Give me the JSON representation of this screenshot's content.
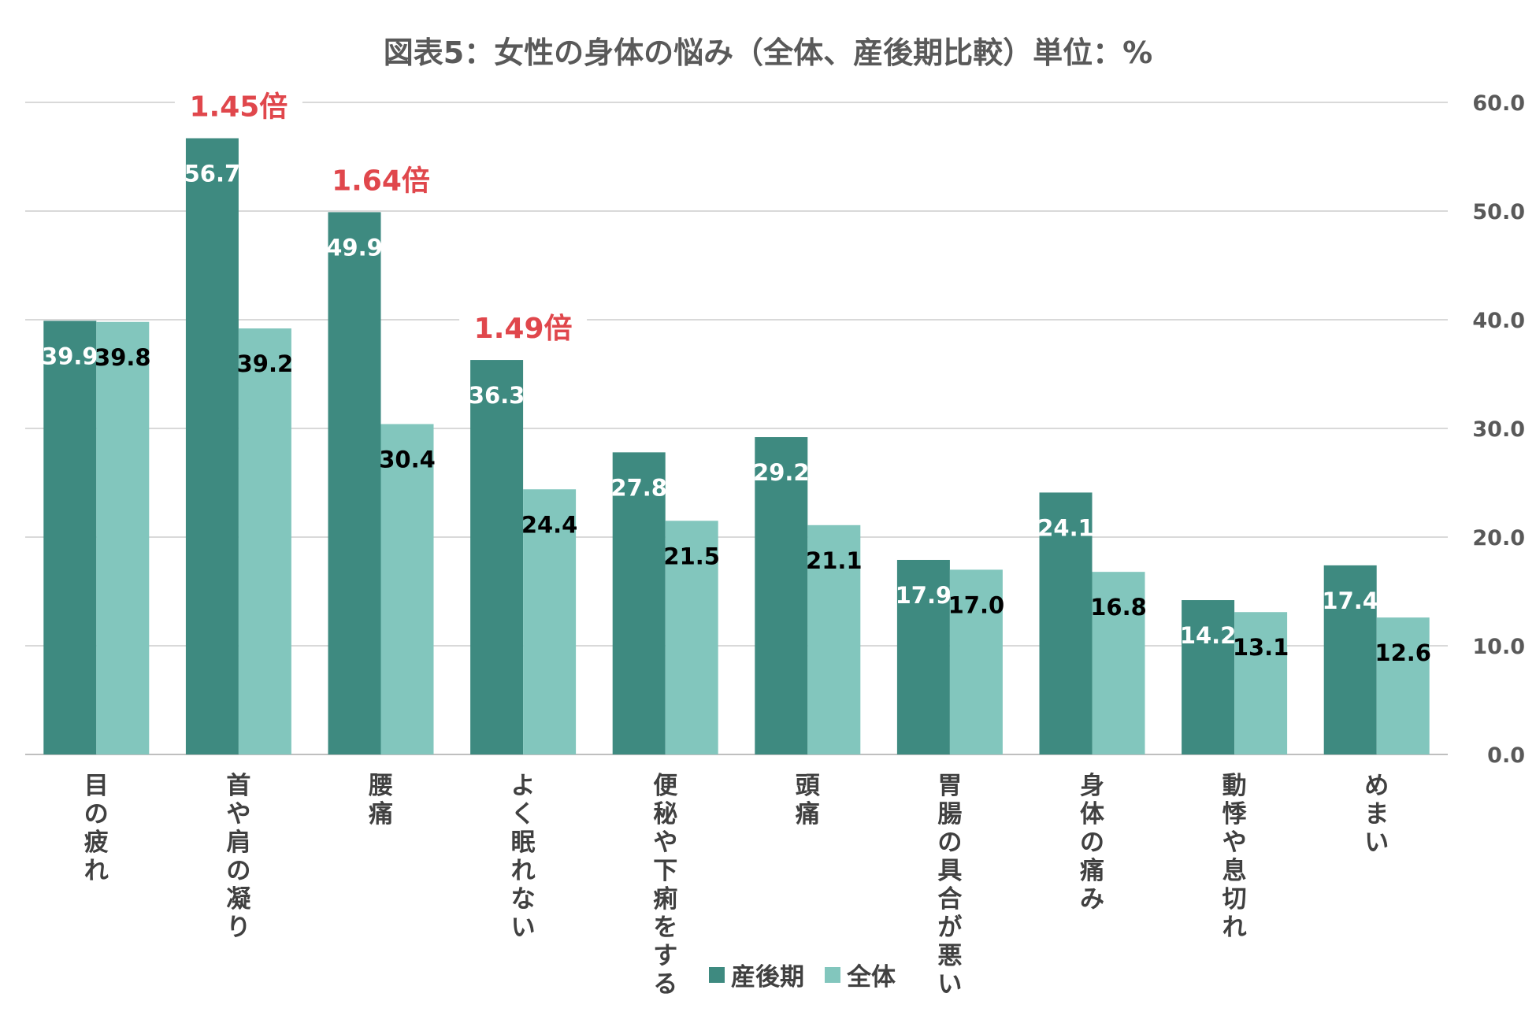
{
  "chart_data": {
    "type": "bar",
    "title": "図表5：女性の身体の悩み（全体、産後期比較）単位：%",
    "categories": [
      "目の疲れ",
      "首や肩の凝り",
      "腰痛",
      "よく眠れない",
      "便秘や下痢をする",
      "頭痛",
      "胃腸の具合が悪い",
      "身体の痛み",
      "動悸や息切れ",
      "めまい"
    ],
    "series": [
      {
        "name": "産後期",
        "color": "#3e8a80",
        "label_color": "#ffffff",
        "values": [
          39.9,
          56.7,
          49.9,
          36.3,
          27.8,
          29.2,
          17.9,
          24.1,
          14.2,
          17.4
        ],
        "labels": [
          "39.9",
          "56.7",
          "49.9",
          "36.3",
          "27.8",
          "29.2",
          "17.9",
          "24.1",
          "14.2",
          "17.4"
        ]
      },
      {
        "name": "全体",
        "color": "#82c6bd",
        "label_color": "#000000",
        "values": [
          39.8,
          39.2,
          30.4,
          24.4,
          21.5,
          21.1,
          17.0,
          16.8,
          13.1,
          12.6
        ],
        "labels": [
          "39.8",
          "39.2",
          "30.4",
          "24.4",
          "21.5",
          "21.1",
          "17.0",
          "16.8",
          "13.1",
          "12.6"
        ]
      }
    ],
    "y_axis": {
      "position": "right",
      "min": 0,
      "max": 60,
      "step": 10,
      "tick_labels": [
        "0.0",
        "10.0",
        "20.0",
        "30.0",
        "40.0",
        "50.0",
        "60.0"
      ]
    },
    "grid": true,
    "legend": {
      "position": "bottom-center"
    },
    "annotations": [
      {
        "category_index": 1,
        "text": "1.45倍",
        "color": "#e0474c"
      },
      {
        "category_index": 2,
        "text": "1.64倍",
        "color": "#e0474c"
      },
      {
        "category_index": 3,
        "text": "1.49倍",
        "color": "#e0474c"
      }
    ]
  }
}
